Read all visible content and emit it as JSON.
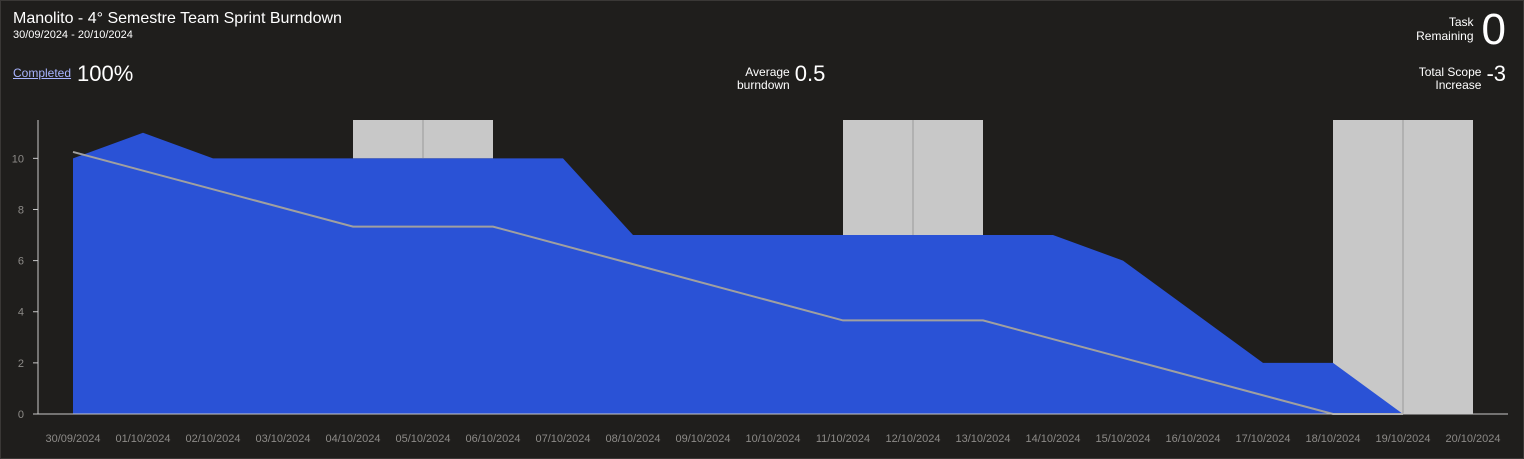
{
  "header": {
    "title": "Manolito - 4° Semestre Team Sprint Burndown",
    "date_range": "30/09/2024 - 20/10/2024"
  },
  "stats": {
    "task_remaining_label_1": "Task",
    "task_remaining_label_2": "Remaining",
    "task_remaining_value": "0",
    "completed_label": "Completed",
    "completed_value": "100%",
    "average_label_1": "Average",
    "average_label_2": "burndown",
    "average_value": "0.5",
    "scope_label_1": "Total Scope",
    "scope_label_2": "Increase",
    "scope_value": "-3"
  },
  "colors": {
    "background": "#1f1e1c",
    "remaining_area": "#2a52d6",
    "ideal_line": "#a0a0a0",
    "non_working_band": "#c8c8c8",
    "axis": "#c8c8c8",
    "tick_text": "#8d8b88"
  },
  "chart_data": {
    "type": "area",
    "categories": [
      "30/09/2024",
      "01/10/2024",
      "02/10/2024",
      "03/10/2024",
      "04/10/2024",
      "05/10/2024",
      "06/10/2024",
      "07/10/2024",
      "08/10/2024",
      "09/10/2024",
      "10/10/2024",
      "11/10/2024",
      "12/10/2024",
      "13/10/2024",
      "14/10/2024",
      "15/10/2024",
      "16/10/2024",
      "17/10/2024",
      "18/10/2024",
      "19/10/2024",
      "20/10/2024"
    ],
    "yticks": [
      0,
      2,
      4,
      6,
      8,
      10
    ],
    "ylim": [
      0,
      11.5
    ],
    "series": [
      {
        "kind": "area",
        "points": [
          [
            0,
            10
          ],
          [
            1,
            11
          ],
          [
            2,
            10
          ],
          [
            3,
            10
          ],
          [
            4,
            10
          ],
          [
            5,
            10
          ],
          [
            6,
            10
          ],
          [
            7,
            10
          ],
          [
            8,
            7
          ],
          [
            9,
            7
          ],
          [
            10,
            7
          ],
          [
            11,
            7
          ],
          [
            12,
            7
          ],
          [
            13,
            7
          ],
          [
            14,
            7
          ],
          [
            15,
            6
          ],
          [
            16,
            4
          ],
          [
            17,
            2
          ],
          [
            18,
            2
          ],
          [
            19,
            0
          ]
        ]
      },
      {
        "kind": "line",
        "points": [
          [
            0,
            10.25
          ],
          [
            4,
            7.33
          ],
          [
            6,
            7.33
          ],
          [
            11,
            3.66
          ],
          [
            13,
            3.66
          ],
          [
            18,
            0
          ],
          [
            19,
            0
          ]
        ]
      }
    ],
    "non_working_bands": [
      {
        "from": 4,
        "to": 6,
        "dividers": [
          5
        ],
        "top": 11.5,
        "bottom": 10
      },
      {
        "from": 11,
        "to": 13,
        "dividers": [
          12
        ],
        "top": 11.5,
        "bottom": 7
      },
      {
        "from": 18,
        "to": 20,
        "dividers": [
          19
        ],
        "top": 11.5,
        "bottom": 0
      }
    ]
  }
}
